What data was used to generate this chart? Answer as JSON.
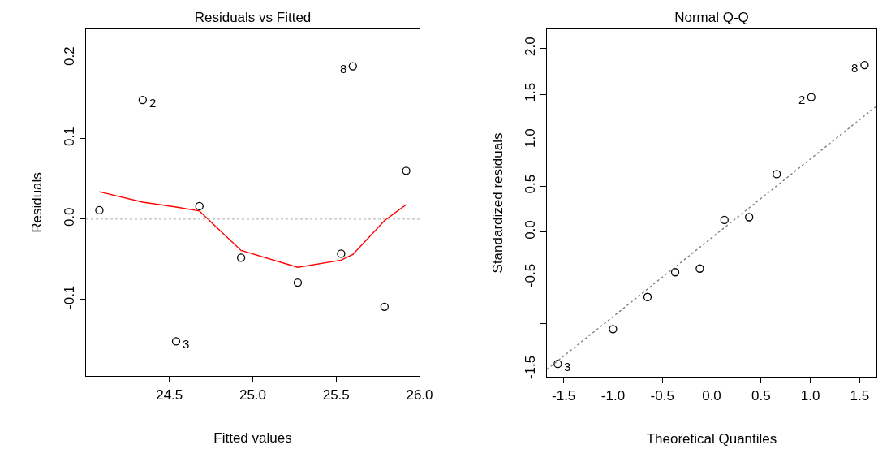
{
  "chart_data": [
    {
      "type": "scatter",
      "title": "Residuals vs Fitted",
      "xlabel": "Fitted values",
      "ylabel": "Residuals",
      "xlim": [
        24.0,
        26.0
      ],
      "ylim": [
        -0.195,
        0.236
      ],
      "xticks": [
        24.5,
        {
          "value": 25,
          "label": "25.0"
        },
        25.5,
        {
          "value": 26,
          "label": "26.0"
        }
      ],
      "yticks": [
        -0.1,
        {
          "value": 0,
          "label": "0.0"
        },
        0.1,
        0.2
      ],
      "grid": false,
      "legend": false,
      "series": [
        {
          "type": "scatter",
          "marker": "circle",
          "color": "#000000",
          "x": [
            24.08,
            24.34,
            24.54,
            24.68,
            24.93,
            25.27,
            25.53,
            25.6,
            25.79,
            25.92
          ],
          "values": [
            0.011,
            0.148,
            -0.152,
            0.016,
            -0.048,
            -0.079,
            -0.043,
            0.19,
            -0.109,
            0.06
          ]
        },
        {
          "type": "line",
          "marker": "none",
          "line_style": "solid",
          "color": "#ff0000",
          "x": [
            24.08,
            24.34,
            24.54,
            24.68,
            24.93,
            25.27,
            25.53,
            25.6,
            25.79,
            25.92
          ],
          "values": [
            0.034,
            0.021,
            0.015,
            0.01,
            -0.039,
            -0.06,
            -0.051,
            -0.044,
            -0.002,
            0.018
          ]
        }
      ],
      "ref_lines": [
        {
          "axis": "y",
          "value": 0,
          "color": "#bebebe",
          "line_style": "dotted"
        }
      ],
      "annotations": [
        {
          "text": "2",
          "x": 24.34,
          "y": 0.148
        },
        {
          "text": "3",
          "x": 24.54,
          "y": -0.152
        },
        {
          "text": "8",
          "x": 25.6,
          "y": 0.19
        }
      ]
    },
    {
      "type": "scatter",
      "title": "Normal Q-Q",
      "xlabel": "Theoretical Quantiles",
      "ylabel": "Standardized residuals",
      "xlim": [
        -1.67,
        1.67
      ],
      "ylim": [
        -1.58,
        2.21
      ],
      "xticks": [
        -1.5,
        {
          "value": -1,
          "label": "-1.0"
        },
        -0.5,
        {
          "value": 0,
          "label": "0.0"
        },
        0.5,
        {
          "value": 1,
          "label": "1.0"
        },
        1.5
      ],
      "yticks": [
        -1.5,
        {
          "value": -1,
          "label": null
        },
        -0.5,
        {
          "value": 0,
          "label": "0.0"
        },
        0.5,
        {
          "value": 1,
          "label": "1.0"
        },
        1.5,
        {
          "value": 2,
          "label": "2.0"
        }
      ],
      "grid": false,
      "legend": false,
      "series": [
        {
          "type": "scatter",
          "marker": "circle",
          "color": "#000000",
          "x": [
            -1.56,
            -1,
            -0.65,
            -0.37,
            -0.12,
            0.13,
            0.38,
            0.66,
            1.01,
            1.55
          ],
          "values": [
            -1.44,
            -1.06,
            -0.71,
            -0.44,
            -0.4,
            0.13,
            0.16,
            0.63,
            1.47,
            1.82
          ]
        },
        {
          "type": "line",
          "marker": "none",
          "line_style": "dotted",
          "color": "#808080",
          "x": [
            -1.67,
            1.67
          ],
          "values": [
            -1.5,
            1.37
          ]
        }
      ],
      "annotations": [
        {
          "text": "3",
          "x": -1.56,
          "y": -1.44
        },
        {
          "text": "2",
          "x": 1.01,
          "y": 1.47
        },
        {
          "text": "8",
          "x": 1.55,
          "y": 1.82
        }
      ]
    }
  ]
}
